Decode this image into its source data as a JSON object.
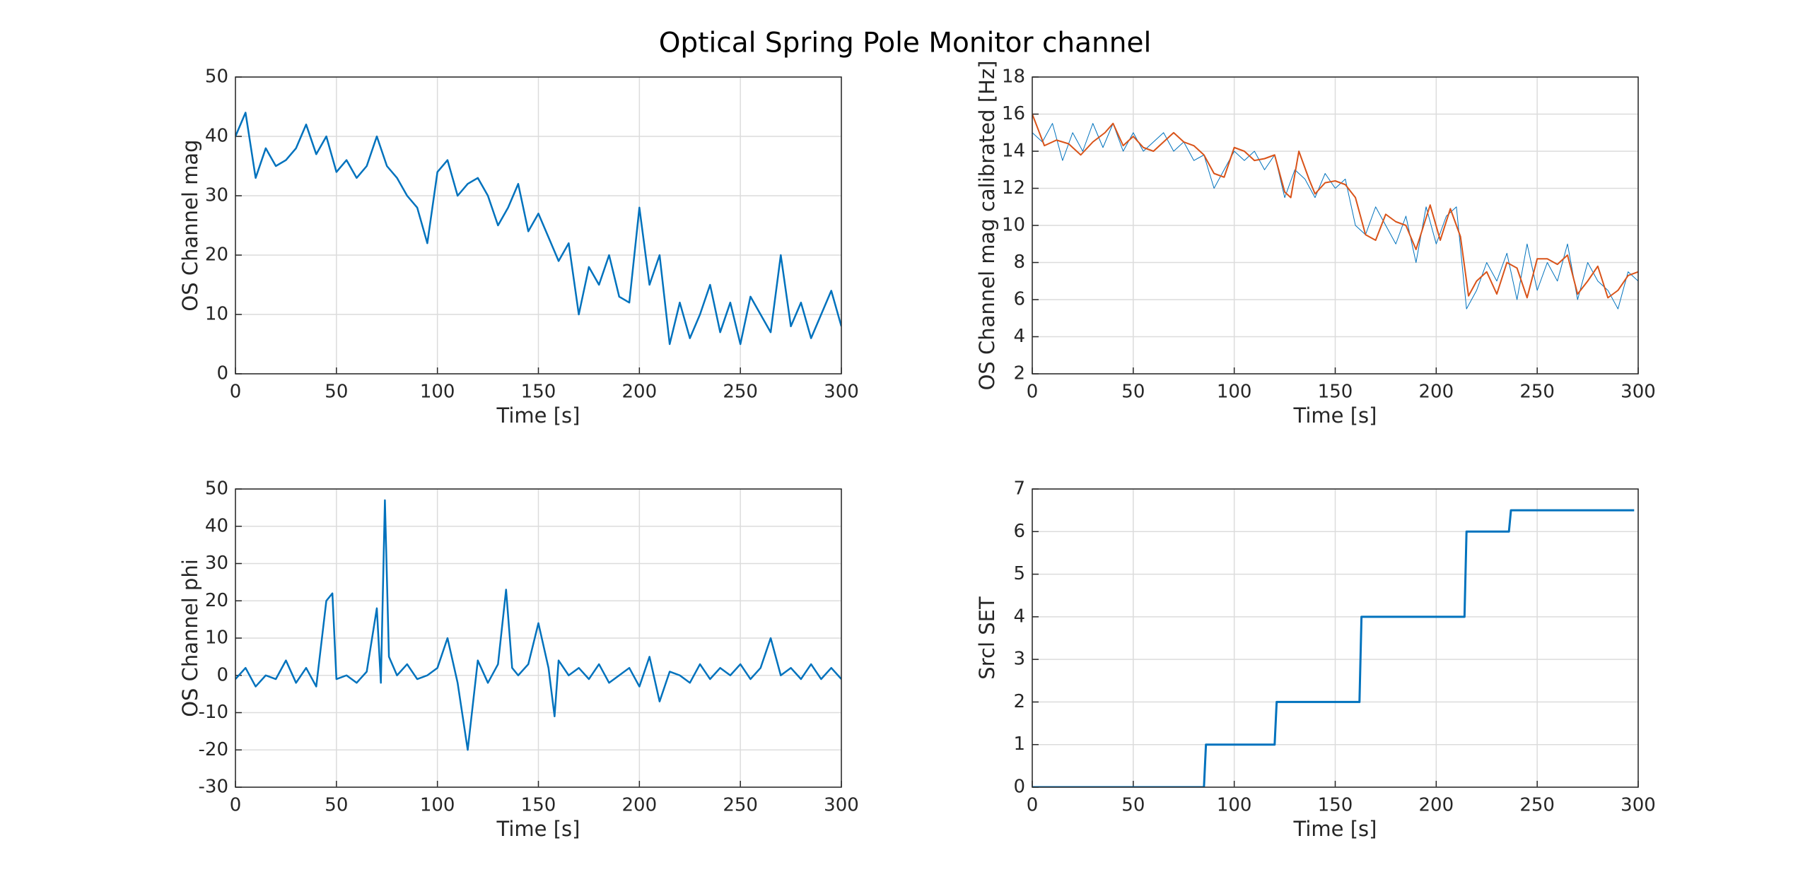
{
  "title": "Optical Spring Pole Monitor channel",
  "chart_data": [
    {
      "type": "line",
      "xlabel": "Time [s]",
      "ylabel": "OS Channel mag",
      "xlim": [
        0,
        300
      ],
      "ylim": [
        0,
        50
      ],
      "xticks": [
        0,
        50,
        100,
        150,
        200,
        250,
        300
      ],
      "yticks": [
        0,
        10,
        20,
        30,
        40,
        50
      ],
      "grid": true,
      "series": [
        {
          "color": "#0072bd",
          "line_width": 2.5,
          "x": [
            0,
            5,
            10,
            15,
            20,
            25,
            30,
            35,
            40,
            45,
            50,
            55,
            60,
            65,
            70,
            75,
            80,
            85,
            90,
            95,
            100,
            105,
            110,
            115,
            120,
            125,
            130,
            135,
            140,
            145,
            150,
            155,
            160,
            165,
            170,
            175,
            180,
            185,
            190,
            195,
            200,
            205,
            210,
            215,
            220,
            225,
            230,
            235,
            240,
            245,
            250,
            255,
            260,
            265,
            270,
            275,
            280,
            285,
            290,
            295,
            300
          ],
          "values": [
            40,
            44,
            33,
            38,
            35,
            36,
            38,
            42,
            37,
            40,
            34,
            36,
            33,
            35,
            40,
            35,
            33,
            30,
            28,
            22,
            34,
            36,
            30,
            32,
            33,
            30,
            25,
            28,
            32,
            24,
            27,
            23,
            19,
            22,
            10,
            18,
            15,
            20,
            13,
            12,
            28,
            15,
            20,
            5,
            12,
            6,
            10,
            15,
            7,
            12,
            5,
            13,
            10,
            7,
            20,
            8,
            12,
            6,
            10,
            14,
            8
          ]
        }
      ]
    },
    {
      "type": "line",
      "xlabel": "Time [s]",
      "ylabel": "OS Channel mag calibrated [Hz]",
      "xlim": [
        0,
        300
      ],
      "ylim": [
        2,
        18
      ],
      "xticks": [
        0,
        50,
        100,
        150,
        200,
        250,
        300
      ],
      "yticks": [
        2,
        4,
        6,
        8,
        10,
        12,
        14,
        16,
        18
      ],
      "grid": true,
      "series": [
        {
          "color": "#0072bd",
          "line_width": 1,
          "x": [
            0,
            5,
            10,
            15,
            20,
            25,
            30,
            35,
            40,
            45,
            50,
            55,
            60,
            65,
            70,
            75,
            80,
            85,
            90,
            95,
            100,
            105,
            110,
            115,
            120,
            125,
            130,
            135,
            140,
            145,
            150,
            155,
            160,
            165,
            170,
            175,
            180,
            185,
            190,
            195,
            200,
            205,
            210,
            215,
            220,
            225,
            230,
            235,
            240,
            245,
            250,
            255,
            260,
            265,
            270,
            275,
            280,
            285,
            290,
            295,
            300
          ],
          "values": [
            15,
            14.5,
            15.5,
            13.5,
            15,
            14,
            15.5,
            14.2,
            15.5,
            14,
            15,
            14,
            14.5,
            15,
            14,
            14.5,
            13.5,
            13.8,
            12,
            13,
            14,
            13.5,
            14,
            13,
            13.8,
            11.5,
            13,
            12.5,
            11.5,
            12.8,
            12,
            12.5,
            10,
            9.5,
            11,
            10,
            9,
            10.5,
            8,
            11,
            9,
            10.5,
            11,
            5.5,
            6.5,
            8,
            7,
            8.5,
            6,
            9,
            6.5,
            8,
            7,
            9,
            6,
            8,
            7,
            6.5,
            5.5,
            7.5,
            7
          ]
        },
        {
          "color": "#d95319",
          "line_width": 2,
          "x": [
            0,
            6,
            12,
            18,
            24,
            30,
            36,
            40,
            45,
            50,
            55,
            60,
            65,
            70,
            75,
            80,
            85,
            90,
            95,
            100,
            105,
            110,
            115,
            120,
            125,
            128,
            132,
            137,
            140,
            145,
            150,
            155,
            160,
            165,
            170,
            175,
            180,
            185,
            190,
            197,
            202,
            207,
            212,
            216,
            220,
            225,
            230,
            235,
            240,
            245,
            250,
            255,
            260,
            265,
            270,
            275,
            280,
            285,
            290,
            295,
            300
          ],
          "values": [
            16,
            14.3,
            14.6,
            14.4,
            13.8,
            14.5,
            15,
            15.5,
            14.3,
            14.8,
            14.2,
            14,
            14.5,
            15,
            14.5,
            14.3,
            13.8,
            12.8,
            12.6,
            14.2,
            14,
            13.5,
            13.6,
            13.8,
            11.8,
            11.5,
            14,
            12.5,
            11.7,
            12.3,
            12.4,
            12.2,
            11.5,
            9.5,
            9.2,
            10.6,
            10.2,
            10,
            8.7,
            11.1,
            9.2,
            10.9,
            9.4,
            6.2,
            7,
            7.5,
            6.3,
            8,
            7.7,
            6.1,
            8.2,
            8.2,
            7.9,
            8.4,
            6.3,
            7,
            7.8,
            6.1,
            6.5,
            7.3,
            7.5
          ]
        }
      ]
    },
    {
      "type": "line",
      "xlabel": "Time [s]",
      "ylabel": "OS Channel phi",
      "xlim": [
        0,
        300
      ],
      "ylim": [
        -30,
        50
      ],
      "xticks": [
        0,
        50,
        100,
        150,
        200,
        250,
        300
      ],
      "yticks": [
        -30,
        -20,
        -10,
        0,
        10,
        20,
        30,
        40,
        50
      ],
      "grid": true,
      "series": [
        {
          "color": "#0072bd",
          "line_width": 2.5,
          "x": [
            0,
            5,
            10,
            15,
            20,
            25,
            30,
            35,
            40,
            45,
            48,
            50,
            55,
            60,
            65,
            70,
            72,
            74,
            76,
            80,
            85,
            90,
            95,
            100,
            105,
            110,
            115,
            120,
            125,
            130,
            134,
            137,
            140,
            145,
            150,
            155,
            158,
            160,
            165,
            170,
            175,
            180,
            185,
            190,
            195,
            200,
            205,
            210,
            215,
            220,
            225,
            230,
            235,
            240,
            245,
            250,
            255,
            260,
            265,
            270,
            275,
            280,
            285,
            290,
            295,
            300
          ],
          "values": [
            -1,
            2,
            -3,
            0,
            -1,
            4,
            -2,
            2,
            -3,
            20,
            22,
            -1,
            0,
            -2,
            1,
            18,
            -2,
            47,
            5,
            0,
            3,
            -1,
            0,
            2,
            10,
            -2,
            -20,
            4,
            -2,
            3,
            23,
            2,
            0,
            3,
            14,
            2,
            -11,
            4,
            0,
            2,
            -1,
            3,
            -2,
            0,
            2,
            -3,
            5,
            -7,
            1,
            0,
            -2,
            3,
            -1,
            2,
            0,
            3,
            -1,
            2,
            10,
            0,
            2,
            -1,
            3,
            -1,
            2,
            -1
          ]
        }
      ]
    },
    {
      "type": "line",
      "xlabel": "Time [s]",
      "ylabel": "Srcl SET",
      "xlim": [
        0,
        300
      ],
      "ylim": [
        0,
        7
      ],
      "xticks": [
        0,
        50,
        100,
        150,
        200,
        250,
        300
      ],
      "yticks": [
        0,
        1,
        2,
        3,
        4,
        5,
        6,
        7
      ],
      "grid": true,
      "series": [
        {
          "color": "#0072bd",
          "line_width": 3,
          "x": [
            0,
            85,
            86,
            120,
            121,
            162,
            163,
            214,
            215,
            236,
            237,
            298
          ],
          "values": [
            0,
            0,
            1,
            1,
            2,
            2,
            4,
            4,
            6,
            6,
            6.5,
            6.5
          ]
        }
      ]
    }
  ]
}
